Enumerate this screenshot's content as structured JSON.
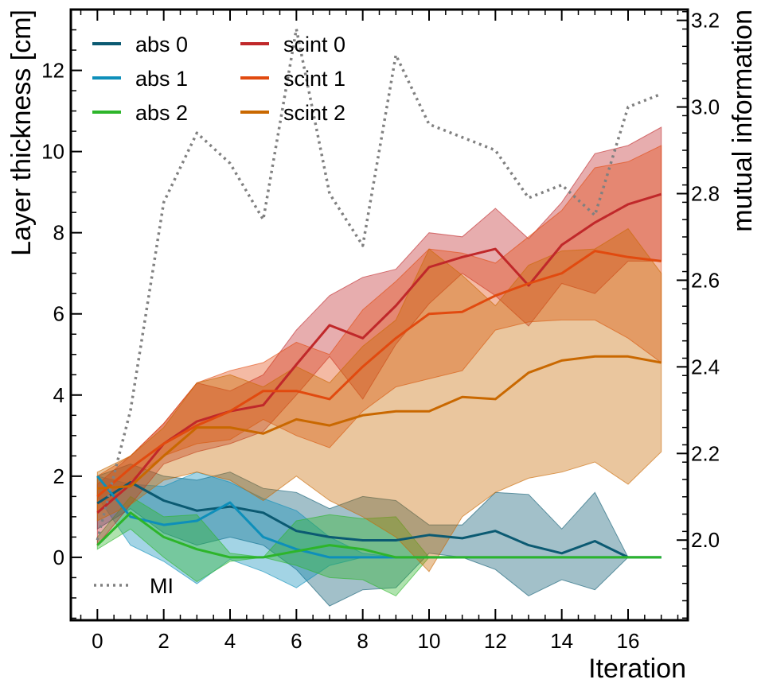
{
  "chart_data": {
    "type": "line",
    "xlabel": "Iteration",
    "ylabel": "Layer thickness [cm]",
    "y2label": "mutual information",
    "xlim": [
      -0.8,
      17.8
    ],
    "ylim": [
      -1.55,
      13.5
    ],
    "y2lim": [
      1.815,
      3.225
    ],
    "x_ticks": [
      0,
      2,
      4,
      6,
      8,
      10,
      12,
      14,
      16
    ],
    "y_ticks": [
      0,
      2,
      4,
      6,
      8,
      10,
      12
    ],
    "y2_ticks": [
      2.0,
      2.2,
      2.4,
      2.6,
      2.8,
      3.0,
      3.2
    ],
    "x_tick_labels": [
      "0",
      "2",
      "4",
      "6",
      "8",
      "10",
      "12",
      "14",
      "16"
    ],
    "y_tick_labels": [
      "0",
      "2",
      "4",
      "6",
      "8",
      "10",
      "12"
    ],
    "y2_tick_labels": [
      "2.0",
      "2.2",
      "2.4",
      "2.6",
      "2.8",
      "3.0",
      "3.2"
    ],
    "legend_position": "upper-left",
    "mi_legend_position": "lower-left",
    "x": [
      0,
      1,
      2,
      3,
      4,
      5,
      6,
      7,
      8,
      9,
      10,
      11,
      12,
      13,
      14,
      15,
      16,
      17
    ],
    "series": [
      {
        "name": "abs 0",
        "color": "#0b5a72",
        "values": [
          1.33,
          1.85,
          1.4,
          1.15,
          1.25,
          1.1,
          0.65,
          0.5,
          0.42,
          0.42,
          0.55,
          0.47,
          0.65,
          0.3,
          0.1,
          0.4,
          0.0,
          0.0
        ],
        "upper": [
          2.0,
          2.3,
          2.0,
          1.9,
          2.1,
          1.7,
          1.6,
          1.2,
          1.5,
          1.4,
          0.8,
          0.8,
          1.6,
          1.55,
          0.7,
          1.6,
          0.0,
          0.0
        ],
        "lower": [
          0.7,
          1.2,
          0.6,
          0.3,
          0.5,
          0.3,
          -0.3,
          -1.2,
          -0.8,
          -0.75,
          0.1,
          0.0,
          -0.3,
          -0.95,
          -0.55,
          -0.8,
          0.0,
          0.0
        ]
      },
      {
        "name": "abs 1",
        "color": "#0e8fba",
        "values": [
          2.0,
          1.0,
          0.8,
          0.9,
          1.35,
          0.5,
          0.2,
          0.0,
          0.0,
          0.0,
          0.0,
          0.0,
          0.0,
          0.0,
          0.0,
          0.0,
          0.0,
          0.0
        ],
        "upper": [
          2.0,
          1.8,
          1.75,
          2.1,
          1.85,
          1.45,
          1.15,
          0.5,
          0.1,
          0.0,
          0.0,
          0.0,
          0.0,
          0.0,
          0.0,
          0.0,
          0.0,
          0.0
        ],
        "lower": [
          1.5,
          0.3,
          -0.1,
          -0.65,
          -0.05,
          -0.35,
          -0.75,
          -0.2,
          0.0,
          0.0,
          0.0,
          0.0,
          0.0,
          0.0,
          0.0,
          0.0,
          0.0,
          0.0
        ]
      },
      {
        "name": "abs 2",
        "color": "#2db52a",
        "values": [
          0.3,
          1.1,
          0.5,
          0.2,
          0.0,
          0.0,
          0.15,
          0.3,
          0.2,
          0.0,
          0.0,
          0.0,
          0.0,
          0.0,
          0.0,
          0.0,
          0.0,
          0.0
        ],
        "upper": [
          0.5,
          1.5,
          1.0,
          1.05,
          0.1,
          0.0,
          0.9,
          1.05,
          0.95,
          1.0,
          0.0,
          0.0,
          0.0,
          0.0,
          0.0,
          0.0,
          0.0,
          0.0
        ],
        "lower": [
          0.2,
          0.7,
          0.0,
          -0.6,
          -0.1,
          0.0,
          -0.2,
          -0.5,
          -0.55,
          -0.95,
          0.0,
          0.0,
          0.0,
          0.0,
          0.0,
          0.0,
          0.0,
          0.0
        ]
      },
      {
        "name": "scint 0",
        "color": "#c0282a",
        "values": [
          1.1,
          1.8,
          2.8,
          3.35,
          3.6,
          3.75,
          4.75,
          5.72,
          5.4,
          6.2,
          7.15,
          7.4,
          7.6,
          6.7,
          7.7,
          8.25,
          8.7,
          8.95
        ],
        "upper": [
          1.8,
          2.5,
          3.3,
          4.3,
          4.1,
          4.5,
          5.6,
          6.45,
          6.9,
          7.1,
          8.0,
          7.9,
          8.6,
          7.85,
          8.75,
          9.95,
          10.15,
          10.6
        ],
        "lower": [
          0.3,
          1.3,
          2.3,
          2.6,
          2.8,
          3.1,
          4.0,
          4.95,
          3.9,
          5.25,
          6.25,
          7.0,
          6.45,
          5.7,
          6.75,
          6.5,
          7.3,
          7.3
        ]
      },
      {
        "name": "scint 1",
        "color": "#e14a0f",
        "values": [
          1.5,
          2.2,
          2.8,
          3.25,
          3.6,
          4.1,
          4.1,
          3.9,
          4.7,
          5.4,
          6.0,
          6.05,
          6.45,
          6.75,
          7.0,
          7.55,
          7.4,
          7.3
        ],
        "upper": [
          2.0,
          2.5,
          3.3,
          4.3,
          4.6,
          4.8,
          5.3,
          5.0,
          6.1,
          6.8,
          7.6,
          7.5,
          7.25,
          7.9,
          8.55,
          9.6,
          9.75,
          10.15
        ],
        "lower": [
          1.1,
          1.9,
          2.5,
          2.8,
          2.9,
          3.4,
          3.0,
          2.7,
          3.6,
          4.2,
          4.4,
          4.6,
          5.6,
          5.8,
          5.85,
          5.85,
          5.4,
          4.8
        ]
      },
      {
        "name": "scint 2",
        "color": "#c96800",
        "values": [
          1.7,
          1.75,
          2.5,
          3.2,
          3.2,
          3.05,
          3.4,
          3.25,
          3.5,
          3.6,
          3.6,
          3.95,
          3.9,
          4.55,
          4.85,
          4.95,
          4.95,
          4.8
        ],
        "upper": [
          2.1,
          2.5,
          3.2,
          4.3,
          4.5,
          4.2,
          4.7,
          4.3,
          5.2,
          5.85,
          7.6,
          6.95,
          6.2,
          7.2,
          7.55,
          7.6,
          8.1,
          7.0
        ],
        "lower": [
          0.9,
          1.3,
          1.9,
          2.1,
          1.9,
          1.4,
          2.0,
          1.4,
          1.0,
          0.5,
          -0.35,
          1.0,
          1.6,
          1.95,
          2.1,
          2.35,
          1.8,
          2.6
        ]
      }
    ],
    "mi_series": {
      "name": "MI",
      "color": "#808080",
      "axis": "right",
      "values": [
        2.0,
        2.3,
        2.78,
        2.94,
        2.87,
        2.74,
        3.18,
        2.8,
        2.68,
        3.12,
        2.96,
        2.93,
        2.9,
        2.79,
        2.82,
        2.75,
        3.0,
        3.03
      ]
    }
  }
}
